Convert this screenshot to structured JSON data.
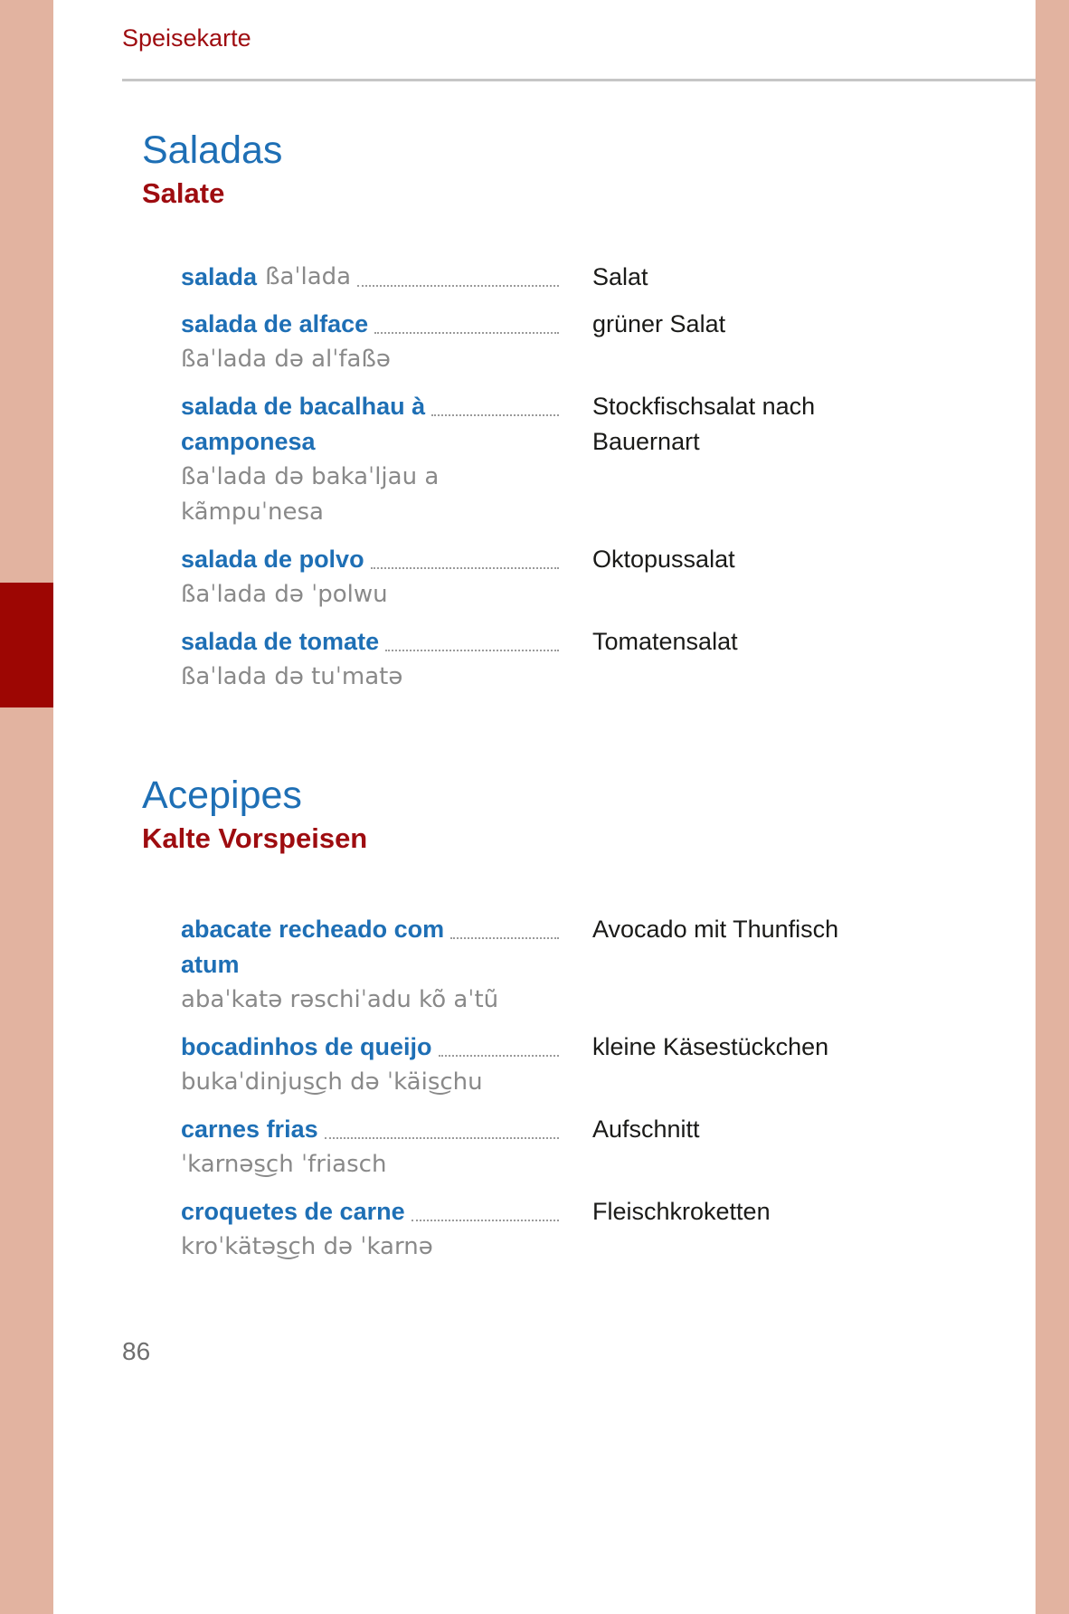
{
  "page": {
    "header": "Speisekarte",
    "page_number": "86"
  },
  "colors": {
    "accent_blue": "#1e6fb5",
    "accent_red": "#9e0c10",
    "sidebar_salmon": "#e2b3a0",
    "sidebar_red_marker": "#9d0603",
    "phonetic_gray": "#898989",
    "rule_gray": "#c6c6c6"
  },
  "sections": [
    {
      "title_pt": "Saladas",
      "title_de": "Salate",
      "entries": [
        {
          "term": "salada",
          "phon_inline": "ßaˈlada",
          "german": "Salat"
        },
        {
          "term": "salada de alface",
          "phon": "ßaˈlada də alˈfaßə",
          "german": "grüner Salat"
        },
        {
          "term": "salada de bacalhau à",
          "term2": "camponesa",
          "phon": "ßaˈlada də bakaˈljau a",
          "phon2": "kãmpuˈnesa",
          "german": "Stockfischsalat nach",
          "german2": "Bauernart"
        },
        {
          "term": "salada de polvo",
          "phon": "ßaˈlada də ˈpolwu",
          "german": "Oktopussalat"
        },
        {
          "term": "salada de tomate",
          "phon": "ßaˈlada də tuˈmatə",
          "german": "Tomatensalat"
        }
      ]
    },
    {
      "title_pt": "Acepipes",
      "title_de": "Kalte Vorspeisen",
      "entries": [
        {
          "term": "abacate recheado com",
          "term2": "atum",
          "phon": "abaˈkatə rəschiˈadu kõ aˈtũ",
          "german": "Avocado mit Thunfisch"
        },
        {
          "term": "bocadinhos de queijo",
          "phon": "bukaˈdinjus͜ch də ˈkäis͜chu",
          "german": "kleine Käsestückchen"
        },
        {
          "term": "carnes frias",
          "phon": "ˈkarnəs͜ch ˈfriasch",
          "german": "Aufschnitt"
        },
        {
          "term": "croquetes de carne",
          "phon": "kroˈkätəs͜ch də ˈkarnə",
          "german": "Fleischkroketten"
        }
      ]
    }
  ]
}
